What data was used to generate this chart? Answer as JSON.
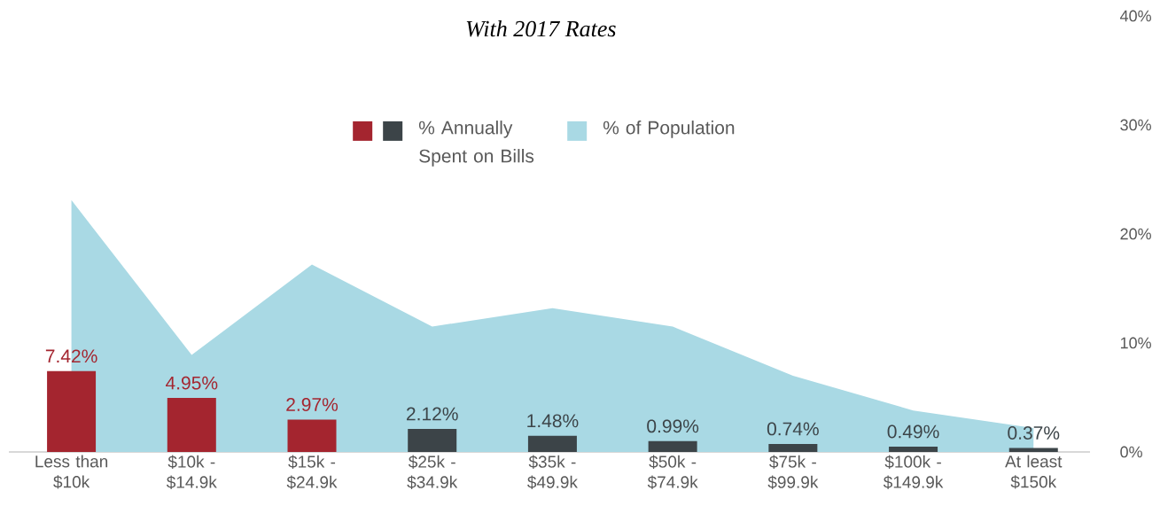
{
  "chart_data": {
    "type": "bar",
    "title": "With 2017 Rates",
    "categories": [
      "Less than $10k",
      "$10k - $14.9k",
      "$15k - $24.9k",
      "$25k - $34.9k",
      "$35k - $49.9k",
      "$50k - $74.9k",
      "$75k - $99.9k",
      "$100k - $149.9k",
      "At least $150k"
    ],
    "series": [
      {
        "name": "% Annually Spent on Bills",
        "colors": [
          "#a4252f",
          "#a4252f",
          "#a4252f",
          "#3c4448",
          "#3c4448",
          "#3c4448",
          "#3c4448",
          "#3c4448",
          "#3c4448"
        ],
        "values": [
          7.42,
          4.95,
          2.97,
          2.12,
          1.48,
          0.99,
          0.74,
          0.49,
          0.37
        ],
        "value_labels": [
          "7.42%",
          "4.95%",
          "2.97%",
          "2.12%",
          "1.48%",
          "0.99%",
          "0.74%",
          "0.49%",
          "0.37%"
        ]
      },
      {
        "name": "% of Population",
        "type": "area",
        "color": "#a9d9e4",
        "values": [
          23.1,
          8.9,
          17.2,
          11.5,
          13.2,
          11.5,
          7.0,
          3.8,
          2.2
        ]
      }
    ],
    "ylim": [
      0,
      40
    ],
    "yticks": [
      {
        "value": 0,
        "label": "0%"
      },
      {
        "value": 10,
        "label": "10%"
      },
      {
        "value": 20,
        "label": "20%"
      },
      {
        "value": 30,
        "label": "30%"
      },
      {
        "value": 40,
        "label": "40%"
      }
    ],
    "legend": "top"
  }
}
